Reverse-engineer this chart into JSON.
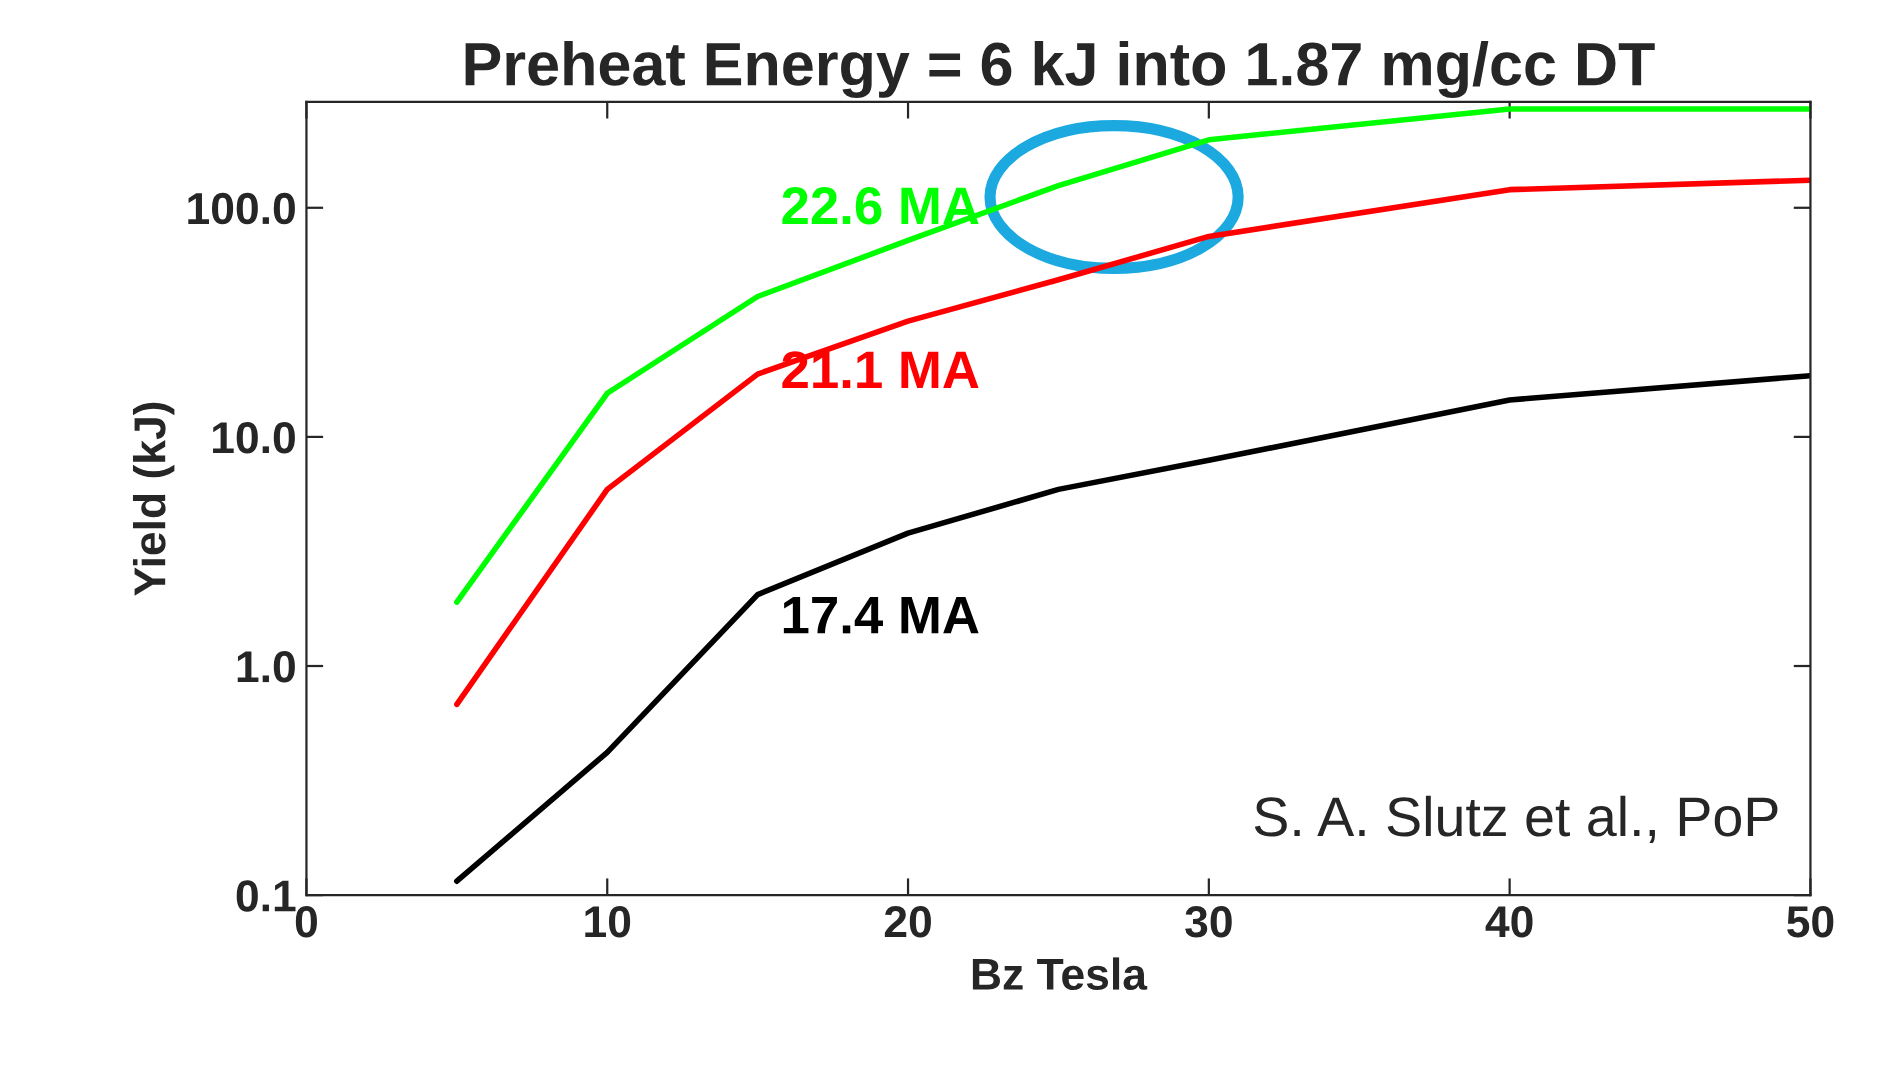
{
  "chart_data": {
    "type": "line",
    "title": "Preheat Energy = 6 kJ into 1.87 mg/cc DT",
    "xlabel": "Bz Tesla",
    "ylabel": "Yield (kJ)",
    "x": [
      5,
      10,
      15,
      20,
      25,
      30,
      40,
      50
    ],
    "series": [
      {
        "name": "22.6 MA",
        "color": "#00ff00",
        "values": [
          1.9,
          15.5,
          41,
          72,
          125,
          198,
          270,
          270
        ]
      },
      {
        "name": "21.1 MA",
        "color": "#ff0000",
        "values": [
          0.68,
          5.9,
          18.8,
          32,
          48.5,
          75,
          120,
          132
        ]
      },
      {
        "name": "17.4 MA",
        "color": "#000000",
        "values": [
          0.115,
          0.42,
          2.05,
          3.8,
          5.9,
          7.9,
          14.5,
          18.5
        ]
      }
    ],
    "log": "y",
    "xlim": [
      0,
      50
    ],
    "ylim": [
      0.1,
      290
    ],
    "xticks": [
      0,
      10,
      20,
      30,
      40,
      50
    ],
    "yticks": [
      {
        "value": 0.1,
        "label": "0.1"
      },
      {
        "value": 1,
        "label": "1.0"
      },
      {
        "value": 10,
        "label": "10.0"
      },
      {
        "value": 100,
        "label": "100.0"
      }
    ],
    "grid": false,
    "legend": false,
    "marker": "none",
    "line_style": "solid",
    "annotations": [
      "S. A. Slutz et al., PoP"
    ]
  }
}
